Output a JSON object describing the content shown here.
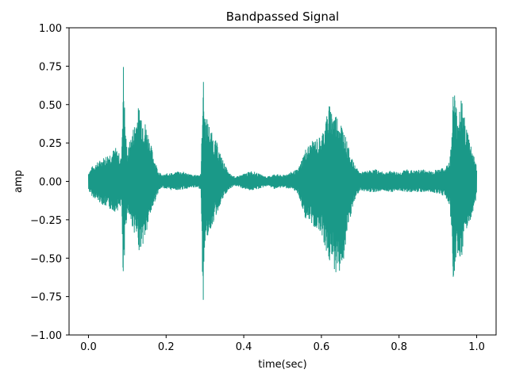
{
  "chart_data": {
    "type": "line",
    "title": "Bandpassed Signal",
    "xlabel": "time(sec)",
    "ylabel": "amp",
    "xlim": [
      -0.05,
      1.05
    ],
    "ylim": [
      -1.0,
      1.0
    ],
    "xticks": [
      0.0,
      0.2,
      0.4,
      0.6,
      0.8,
      1.0
    ],
    "xtick_labels": [
      "0.0",
      "0.2",
      "0.4",
      "0.6",
      "0.8",
      "1.0"
    ],
    "yticks": [
      -1.0,
      -0.75,
      -0.5,
      -0.25,
      0.0,
      0.25,
      0.5,
      0.75,
      1.0
    ],
    "ytick_labels": [
      "−1.00",
      "−0.75",
      "−0.50",
      "−0.25",
      "0.00",
      "0.25",
      "0.50",
      "0.75",
      "1.00"
    ],
    "grid": false,
    "color": "#1a9988",
    "series": [
      {
        "envelope": {
          "t": [
            0.0,
            0.01,
            0.03,
            0.05,
            0.07,
            0.08,
            0.085,
            0.09,
            0.095,
            0.1,
            0.11,
            0.12,
            0.13,
            0.14,
            0.15,
            0.16,
            0.17,
            0.18,
            0.19,
            0.2,
            0.21,
            0.22,
            0.23,
            0.25,
            0.27,
            0.29,
            0.295,
            0.3,
            0.31,
            0.32,
            0.33,
            0.34,
            0.35,
            0.36,
            0.37,
            0.38,
            0.4,
            0.42,
            0.44,
            0.46,
            0.48,
            0.5,
            0.52,
            0.54,
            0.55,
            0.56,
            0.58,
            0.6,
            0.61,
            0.62,
            0.63,
            0.64,
            0.65,
            0.66,
            0.67,
            0.68,
            0.69,
            0.7,
            0.72,
            0.74,
            0.76,
            0.78,
            0.8,
            0.82,
            0.84,
            0.86,
            0.88,
            0.9,
            0.92,
            0.93,
            0.935,
            0.94,
            0.95,
            0.96,
            0.97,
            0.98,
            0.99,
            1.0
          ],
          "upper": [
            0.06,
            0.1,
            0.14,
            0.18,
            0.22,
            0.18,
            0.15,
            0.78,
            0.35,
            0.2,
            0.3,
            0.4,
            0.5,
            0.44,
            0.36,
            0.25,
            0.15,
            0.07,
            0.04,
            0.05,
            0.06,
            0.05,
            0.07,
            0.06,
            0.04,
            0.05,
            0.72,
            0.45,
            0.38,
            0.3,
            0.26,
            0.18,
            0.12,
            0.06,
            0.04,
            0.03,
            0.05,
            0.07,
            0.05,
            0.03,
            0.05,
            0.04,
            0.06,
            0.08,
            0.15,
            0.22,
            0.27,
            0.3,
            0.4,
            0.5,
            0.47,
            0.44,
            0.4,
            0.32,
            0.22,
            0.14,
            0.09,
            0.06,
            0.07,
            0.08,
            0.06,
            0.07,
            0.06,
            0.08,
            0.07,
            0.08,
            0.07,
            0.08,
            0.09,
            0.15,
            0.25,
            0.65,
            0.45,
            0.55,
            0.4,
            0.3,
            0.2,
            0.1
          ],
          "lower": [
            -0.06,
            -0.1,
            -0.14,
            -0.18,
            -0.2,
            -0.18,
            -0.15,
            -0.78,
            -0.35,
            -0.2,
            -0.28,
            -0.35,
            -0.45,
            -0.42,
            -0.34,
            -0.22,
            -0.14,
            -0.07,
            -0.04,
            -0.05,
            -0.06,
            -0.05,
            -0.06,
            -0.05,
            -0.04,
            -0.05,
            -0.88,
            -0.4,
            -0.35,
            -0.28,
            -0.22,
            -0.15,
            -0.1,
            -0.06,
            -0.04,
            -0.03,
            -0.05,
            -0.06,
            -0.05,
            -0.03,
            -0.05,
            -0.04,
            -0.05,
            -0.08,
            -0.18,
            -0.25,
            -0.3,
            -0.33,
            -0.45,
            -0.53,
            -0.55,
            -0.62,
            -0.58,
            -0.5,
            -0.3,
            -0.18,
            -0.1,
            -0.06,
            -0.07,
            -0.07,
            -0.06,
            -0.07,
            -0.06,
            -0.07,
            -0.07,
            -0.07,
            -0.07,
            -0.08,
            -0.1,
            -0.18,
            -0.3,
            -0.68,
            -0.45,
            -0.6,
            -0.35,
            -0.3,
            -0.2,
            -0.1
          ]
        }
      }
    ]
  }
}
